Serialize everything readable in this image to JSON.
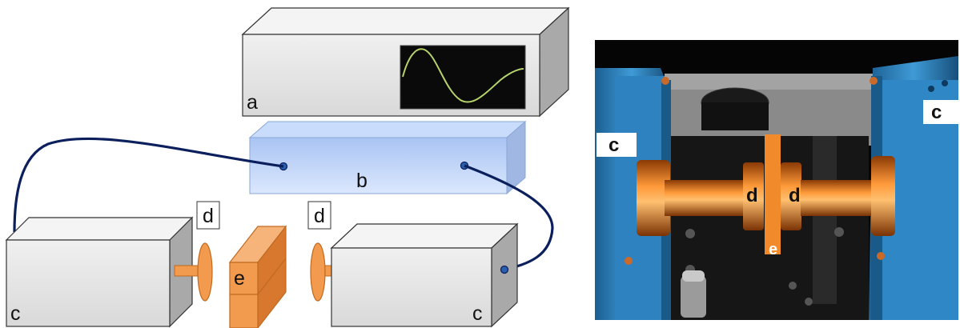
{
  "schematic": {
    "oscilloscope_label": "a",
    "amplifier_label": "b",
    "left_transducer_label": "c",
    "right_transducer_label": "c",
    "left_gel_label": "d",
    "right_gel_label": "d",
    "specimen_label": "e"
  },
  "photo": {
    "left_transducer_label": "c",
    "right_transducer_label": "c",
    "left_gel_label": "d",
    "right_gel_label": "d",
    "specimen_label": "e"
  },
  "colors": {
    "box_fill": "#e6e6e6",
    "box_side": "#a9a9a9",
    "amplifier_fill": "#bcd3fb",
    "cable": "#0b1f5c",
    "orange": "#f29a4d",
    "screen": "#0a0a0a",
    "signal": "#b7d36b"
  }
}
